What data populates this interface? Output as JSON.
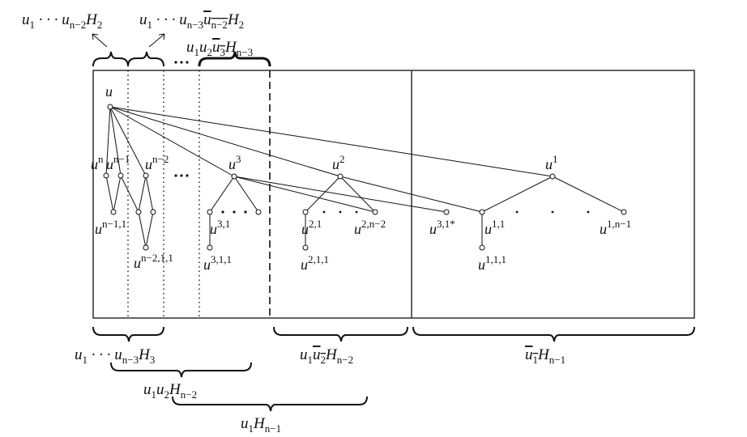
{
  "node_labels": [
    {
      "base": "u"
    },
    {
      "base": "u",
      "sup": "n"
    },
    {
      "base": "u",
      "sup": "n−1"
    },
    {
      "base": "u",
      "sup": "n−2"
    },
    {
      "base": "u",
      "sup": "3"
    },
    {
      "base": "u",
      "sup": "2"
    },
    {
      "base": "u",
      "sup": "1"
    },
    {
      "base": "u",
      "sup": "n−1,1"
    },
    {
      "base": "u",
      "sup": "n−2,1,1"
    },
    {
      "base": "u",
      "sup": "3,1"
    },
    {
      "base": "u",
      "sup": "3,1,1"
    },
    {
      "base": "u",
      "sup": "2,1"
    },
    {
      "base": "u",
      "sup": "2,n−2"
    },
    {
      "base": "u",
      "sup": "3,1*"
    },
    {
      "base": "u",
      "sup": "1,1"
    },
    {
      "base": "u",
      "sup": "1,n−1"
    },
    {
      "base": "u",
      "sup": "2,1,1"
    },
    {
      "base": "u",
      "sup": "1,1,1"
    }
  ],
  "brace_labels": [
    [
      {
        "text": "u"
      },
      {
        "text": "1",
        "style": "sub"
      },
      {
        "text": " · · · u"
      },
      {
        "text": "n−2",
        "style": "sub"
      },
      {
        "text": "H"
      },
      {
        "text": "2",
        "style": "sub"
      }
    ],
    [
      {
        "text": "u"
      },
      {
        "text": "1",
        "style": "sub"
      },
      {
        "text": " · · · u"
      },
      {
        "text": "n−3",
        "style": "sub"
      },
      {
        "text": "u",
        "style": "over"
      },
      {
        "text": "n−2",
        "style": "oversub"
      },
      {
        "text": "H"
      },
      {
        "text": "2",
        "style": "sub"
      }
    ],
    [
      {
        "text": "u"
      },
      {
        "text": "1",
        "style": "sub"
      },
      {
        "text": "u"
      },
      {
        "text": "2",
        "style": "sub"
      },
      {
        "text": "u",
        "style": "over"
      },
      {
        "text": "3",
        "style": "oversub"
      },
      {
        "text": "H"
      },
      {
        "text": "n−3",
        "style": "sub"
      }
    ],
    [
      {
        "text": "u"
      },
      {
        "text": "1",
        "style": "sub"
      },
      {
        "text": " · · · u"
      },
      {
        "text": "n−3",
        "style": "sub"
      },
      {
        "text": "H"
      },
      {
        "text": "3",
        "style": "sub"
      }
    ],
    [
      {
        "text": "u"
      },
      {
        "text": "1",
        "style": "sub"
      },
      {
        "text": "u"
      },
      {
        "text": "2",
        "style": "sub"
      },
      {
        "text": "H"
      },
      {
        "text": "n−2",
        "style": "sub"
      }
    ],
    [
      {
        "text": "u"
      },
      {
        "text": "1",
        "style": "sub"
      },
      {
        "text": "H"
      },
      {
        "text": "n−1",
        "style": "sub"
      }
    ],
    [
      {
        "text": "u"
      },
      {
        "text": "1",
        "style": "sub"
      },
      {
        "text": "u",
        "style": "over"
      },
      {
        "text": "2",
        "style": "oversub"
      },
      {
        "text": "H"
      },
      {
        "text": "n−2",
        "style": "sub"
      }
    ],
    [
      {
        "text": "u",
        "style": "over"
      },
      {
        "text": "1",
        "style": "oversub"
      },
      {
        "text": "H"
      },
      {
        "text": "n−1",
        "style": "sub"
      }
    ]
  ]
}
